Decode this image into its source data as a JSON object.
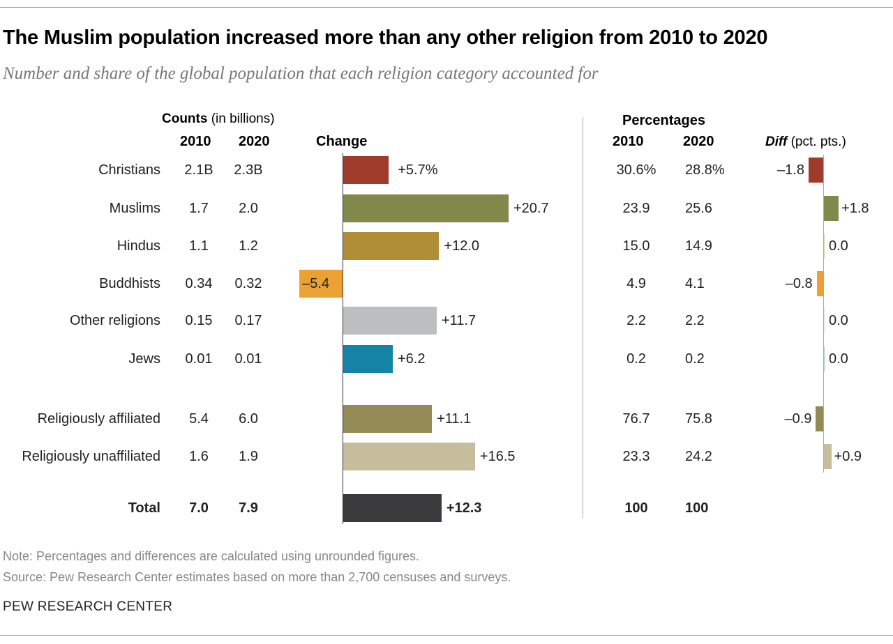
{
  "header": {
    "title": "The Muslim population increased more than any other religion from 2010 to 2020",
    "subtitle": "Number and share of the global population that each religion category accounted for"
  },
  "columns": {
    "counts": "Counts",
    "counts_unit": "(in billions)",
    "y2010": "2010",
    "y2020": "2020",
    "change": "Change",
    "percentages": "Percentages",
    "diff": "Diff",
    "diff_unit": "(pct. pts.)"
  },
  "chart_data": {
    "type": "table",
    "rows": [
      {
        "label": "Christians",
        "c2010": "2.1B",
        "c2020": "2.3B",
        "change": 5.7,
        "change_label": "+5.7%",
        "p2010": "30.6%",
        "p2020": "28.8%",
        "diff": -1.8,
        "diff_label": "–1.8",
        "color": "#9e3b2a",
        "bold": false
      },
      {
        "label": "Muslims",
        "c2010": "1.7",
        "c2020": "2.0",
        "change": 20.7,
        "change_label": "+20.7",
        "p2010": "23.9",
        "p2020": "25.6",
        "diff": 1.8,
        "diff_label": "+1.8",
        "color": "#82874a",
        "bold": false
      },
      {
        "label": "Hindus",
        "c2010": "1.1",
        "c2020": "1.2",
        "change": 12.0,
        "change_label": "+12.0",
        "p2010": "15.0",
        "p2020": "14.9",
        "diff": 0.0,
        "diff_label": "0.0",
        "color": "#b08e38",
        "bold": false
      },
      {
        "label": "Buddhists",
        "c2010": "0.34",
        "c2020": "0.32",
        "change": -5.4,
        "change_label": "–5.4",
        "p2010": "4.9",
        "p2020": "4.1",
        "diff": -0.8,
        "diff_label": "–0.8",
        "color": "#eba133",
        "bold": false
      },
      {
        "label": "Other religions",
        "c2010": "0.15",
        "c2020": "0.17",
        "change": 11.7,
        "change_label": "+11.7",
        "p2010": "2.2",
        "p2020": "2.2",
        "diff": 0.0,
        "diff_label": "0.0",
        "color": "#bdbec0",
        "bold": false
      },
      {
        "label": "Jews",
        "c2010": "0.01",
        "c2020": "0.01",
        "change": 6.2,
        "change_label": "+6.2",
        "p2010": "0.2",
        "p2020": "0.2",
        "diff": 0.0,
        "diff_label": "0.0",
        "color": "#1583a5",
        "bold": false
      },
      {
        "label": "Religiously affiliated",
        "c2010": "5.4",
        "c2020": "6.0",
        "change": 11.1,
        "change_label": "+11.1",
        "p2010": "76.7",
        "p2020": "75.8",
        "diff": -0.9,
        "diff_label": "–0.9",
        "color": "#938a55",
        "bold": false
      },
      {
        "label": "Religiously unaffiliated",
        "c2010": "1.6",
        "c2020": "1.9",
        "change": 16.5,
        "change_label": "+16.5",
        "p2010": "23.3",
        "p2020": "24.2",
        "diff": 0.9,
        "diff_label": "+0.9",
        "color": "#c5bd9c",
        "bold": false
      },
      {
        "label": "Total",
        "c2010": "7.0",
        "c2020": "7.9",
        "change": 12.3,
        "change_label": "+12.3",
        "p2010": "100",
        "p2020": "100",
        "diff": null,
        "diff_label": "",
        "color": "#3b3b3d",
        "bold": true
      }
    ]
  },
  "footer": {
    "note": "Note: Percentages and differences are calculated using unrounded figures.",
    "source": "Source: Pew Research Center estimates based on more than 2,700 censuses and surveys.",
    "brand": "PEW RESEARCH CENTER"
  }
}
